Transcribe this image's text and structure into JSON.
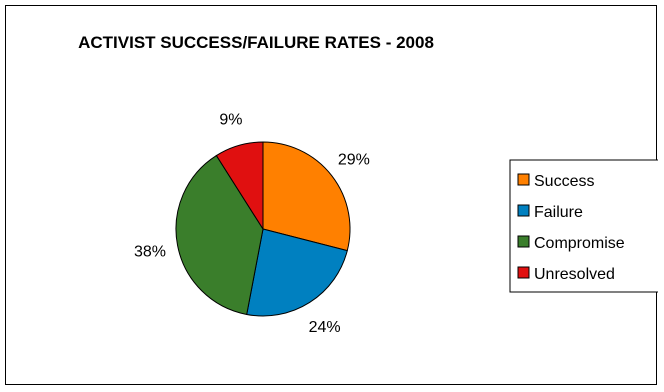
{
  "chart_data": {
    "type": "pie",
    "title": "ACTIVIST SUCCESS/FAILURE RATES - 2008",
    "categories": [
      "Success",
      "Failure",
      "Compromise",
      "Unresolved"
    ],
    "values": [
      29,
      24,
      38,
      9
    ],
    "labels": [
      "29%",
      "24%",
      "38%",
      "9%"
    ],
    "colors": [
      "#FF8000",
      "#0080C0",
      "#3A7E2B",
      "#E01010"
    ],
    "start_angle_deg": 0,
    "direction": "clockwise",
    "legend_position": "right",
    "grid": false
  }
}
